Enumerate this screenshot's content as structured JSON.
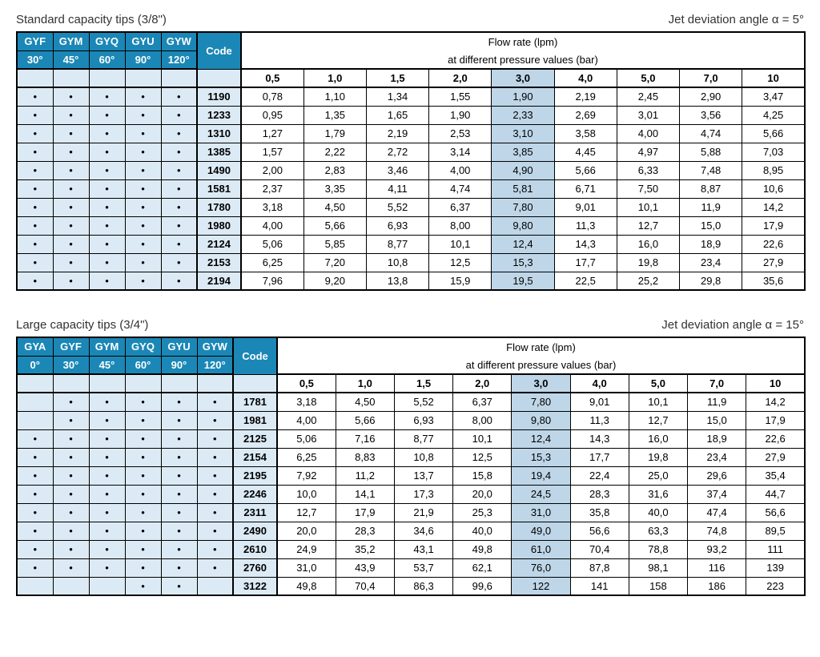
{
  "table1": {
    "title_left": "Standard capacity tips (3/8\")",
    "title_right": "Jet deviation angle α = 5°",
    "models": [
      "GYF",
      "GYM",
      "GYQ",
      "GYU",
      "GYW"
    ],
    "angles": [
      "30°",
      "45°",
      "60°",
      "90°",
      "120°"
    ],
    "code_label": "Code",
    "flow_title1": "Flow rate (lpm)",
    "flow_title2": "at different pressure values (bar)",
    "pressures": [
      "0,5",
      "1,0",
      "1,5",
      "2,0",
      "3,0",
      "4,0",
      "5,0",
      "7,0",
      "10"
    ],
    "highlight_pressure_index": 4,
    "rows": [
      {
        "dots": [
          1,
          1,
          1,
          1,
          1
        ],
        "code": "1190",
        "v": [
          "0,78",
          "1,10",
          "1,34",
          "1,55",
          "1,90",
          "2,19",
          "2,45",
          "2,90",
          "3,47"
        ]
      },
      {
        "dots": [
          1,
          1,
          1,
          1,
          1
        ],
        "code": "1233",
        "v": [
          "0,95",
          "1,35",
          "1,65",
          "1,90",
          "2,33",
          "2,69",
          "3,01",
          "3,56",
          "4,25"
        ]
      },
      {
        "dots": [
          1,
          1,
          1,
          1,
          1
        ],
        "code": "1310",
        "v": [
          "1,27",
          "1,79",
          "2,19",
          "2,53",
          "3,10",
          "3,58",
          "4,00",
          "4,74",
          "5,66"
        ]
      },
      {
        "dots": [
          1,
          1,
          1,
          1,
          1
        ],
        "code": "1385",
        "v": [
          "1,57",
          "2,22",
          "2,72",
          "3,14",
          "3,85",
          "4,45",
          "4,97",
          "5,88",
          "7,03"
        ]
      },
      {
        "dots": [
          1,
          1,
          1,
          1,
          1
        ],
        "code": "1490",
        "v": [
          "2,00",
          "2,83",
          "3,46",
          "4,00",
          "4,90",
          "5,66",
          "6,33",
          "7,48",
          "8,95"
        ]
      },
      {
        "dots": [
          1,
          1,
          1,
          1,
          1
        ],
        "code": "1581",
        "v": [
          "2,37",
          "3,35",
          "4,11",
          "4,74",
          "5,81",
          "6,71",
          "7,50",
          "8,87",
          "10,6"
        ]
      },
      {
        "dots": [
          1,
          1,
          1,
          1,
          1
        ],
        "code": "1780",
        "v": [
          "3,18",
          "4,50",
          "5,52",
          "6,37",
          "7,80",
          "9,01",
          "10,1",
          "11,9",
          "14,2"
        ]
      },
      {
        "dots": [
          1,
          1,
          1,
          1,
          1
        ],
        "code": "1980",
        "v": [
          "4,00",
          "5,66",
          "6,93",
          "8,00",
          "9,80",
          "11,3",
          "12,7",
          "15,0",
          "17,9"
        ]
      },
      {
        "dots": [
          1,
          1,
          1,
          1,
          1
        ],
        "code": "2124",
        "v": [
          "5,06",
          "5,85",
          "8,77",
          "10,1",
          "12,4",
          "14,3",
          "16,0",
          "18,9",
          "22,6"
        ]
      },
      {
        "dots": [
          1,
          1,
          1,
          1,
          1
        ],
        "code": "2153",
        "v": [
          "6,25",
          "7,20",
          "10,8",
          "12,5",
          "15,3",
          "17,7",
          "19,8",
          "23,4",
          "27,9"
        ]
      },
      {
        "dots": [
          1,
          1,
          1,
          1,
          1
        ],
        "code": "2194",
        "v": [
          "7,96",
          "9,20",
          "13,8",
          "15,9",
          "19,5",
          "22,5",
          "25,2",
          "29,8",
          "35,6"
        ]
      }
    ]
  },
  "table2": {
    "title_left": "Large capacity tips (3/4\")",
    "title_right": "Jet deviation angle α = 15°",
    "models": [
      "GYA",
      "GYF",
      "GYM",
      "GYQ",
      "GYU",
      "GYW"
    ],
    "angles": [
      "0°",
      "30°",
      "45°",
      "60°",
      "90°",
      "120°"
    ],
    "code_label": "Code",
    "flow_title1": "Flow rate (lpm)",
    "flow_title2": "at different pressure values (bar)",
    "pressures": [
      "0,5",
      "1,0",
      "1,5",
      "2,0",
      "3,0",
      "4,0",
      "5,0",
      "7,0",
      "10"
    ],
    "highlight_pressure_index": 4,
    "rows": [
      {
        "dots": [
          0,
          1,
          1,
          1,
          1,
          1
        ],
        "code": "1781",
        "v": [
          "3,18",
          "4,50",
          "5,52",
          "6,37",
          "7,80",
          "9,01",
          "10,1",
          "11,9",
          "14,2"
        ]
      },
      {
        "dots": [
          0,
          1,
          1,
          1,
          1,
          1
        ],
        "code": "1981",
        "v": [
          "4,00",
          "5,66",
          "6,93",
          "8,00",
          "9,80",
          "11,3",
          "12,7",
          "15,0",
          "17,9"
        ]
      },
      {
        "dots": [
          1,
          1,
          1,
          1,
          1,
          1
        ],
        "code": "2125",
        "v": [
          "5,06",
          "7,16",
          "8,77",
          "10,1",
          "12,4",
          "14,3",
          "16,0",
          "18,9",
          "22,6"
        ]
      },
      {
        "dots": [
          1,
          1,
          1,
          1,
          1,
          1
        ],
        "code": "2154",
        "v": [
          "6,25",
          "8,83",
          "10,8",
          "12,5",
          "15,3",
          "17,7",
          "19,8",
          "23,4",
          "27,9"
        ]
      },
      {
        "dots": [
          1,
          1,
          1,
          1,
          1,
          1
        ],
        "code": "2195",
        "v": [
          "7,92",
          "11,2",
          "13,7",
          "15,8",
          "19,4",
          "22,4",
          "25,0",
          "29,6",
          "35,4"
        ]
      },
      {
        "dots": [
          1,
          1,
          1,
          1,
          1,
          1
        ],
        "code": "2246",
        "v": [
          "10,0",
          "14,1",
          "17,3",
          "20,0",
          "24,5",
          "28,3",
          "31,6",
          "37,4",
          "44,7"
        ]
      },
      {
        "dots": [
          1,
          1,
          1,
          1,
          1,
          1
        ],
        "code": "2311",
        "v": [
          "12,7",
          "17,9",
          "21,9",
          "25,3",
          "31,0",
          "35,8",
          "40,0",
          "47,4",
          "56,6"
        ]
      },
      {
        "dots": [
          1,
          1,
          1,
          1,
          1,
          1
        ],
        "code": "2490",
        "v": [
          "20,0",
          "28,3",
          "34,6",
          "40,0",
          "49,0",
          "56,6",
          "63,3",
          "74,8",
          "89,5"
        ]
      },
      {
        "dots": [
          1,
          1,
          1,
          1,
          1,
          1
        ],
        "code": "2610",
        "v": [
          "24,9",
          "35,2",
          "43,1",
          "49,8",
          "61,0",
          "70,4",
          "78,8",
          "93,2",
          "111"
        ]
      },
      {
        "dots": [
          1,
          1,
          1,
          1,
          1,
          1
        ],
        "code": "2760",
        "v": [
          "31,0",
          "43,9",
          "53,7",
          "62,1",
          "76,0",
          "87,8",
          "98,1",
          "116",
          "139"
        ]
      },
      {
        "dots": [
          0,
          0,
          0,
          1,
          1,
          0
        ],
        "code": "3122",
        "v": [
          "49,8",
          "70,4",
          "86,3",
          "99,6",
          "122",
          "141",
          "158",
          "186",
          "223"
        ]
      }
    ]
  },
  "style": {
    "header_bg": "#1b87b6",
    "model_bg": "#dceaf5",
    "highlight_bg": "#bed6e8"
  }
}
